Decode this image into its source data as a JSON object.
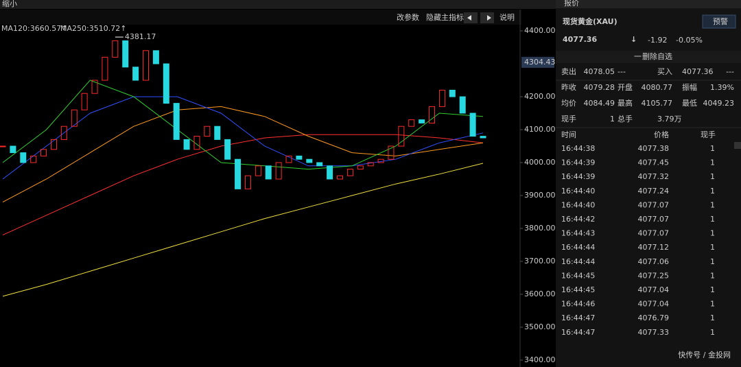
{
  "toolbar": {
    "zoom": "缩小",
    "buttons": [
      "改参数",
      "隐藏主指标",
      "说明"
    ]
  },
  "chart": {
    "ylim": [
      3379.17,
      4493.75
    ],
    "yticks": [
      {
        "value": 4400,
        "label": "4400.00"
      },
      {
        "value": 4200,
        "label": "4200.00"
      },
      {
        "value": 4100,
        "label": "4100.00"
      },
      {
        "value": 4000,
        "label": "4000.00"
      },
      {
        "value": 3900,
        "label": "3900.00"
      },
      {
        "value": 3800,
        "label": "3800.00"
      },
      {
        "value": 3700,
        "label": "3700.00"
      },
      {
        "value": 3600,
        "label": "3600.00"
      },
      {
        "value": 3500,
        "label": "3500.00"
      },
      {
        "value": 3400,
        "label": "3400.00"
      }
    ],
    "price_tag": {
      "value": 4304.43,
      "label": "4304.43"
    },
    "high": {
      "value": 4381.17,
      "label": "4381.17"
    },
    "ma_legend": [
      {
        "label": "MA120:3660.57↑",
        "color": "#ff4040"
      },
      {
        "label": "MA250:3510.72↑",
        "color": "#ffb020"
      }
    ],
    "up_color": "#ff2a2a",
    "down_color": "#27d8e0",
    "closes": [
      4050,
      4030,
      4000,
      4020,
      4040,
      4070,
      4110,
      4160,
      4210,
      4250,
      4320,
      4370,
      4290,
      4250,
      4340,
      4300,
      4180,
      4070,
      4040,
      4080,
      4110,
      4070,
      4010,
      3920,
      3960,
      3990,
      3950,
      4000,
      4020,
      4010,
      4000,
      3990,
      3950,
      3960,
      3980,
      3990,
      4000,
      4010,
      4050,
      4110,
      4130,
      4120,
      4170,
      4220,
      4200,
      4150,
      4080,
      4075
    ],
    "ma_lines": [
      {
        "color": "#f0e040",
        "values": [
          3594,
          3630,
          3670,
          3710,
          3750,
          3790,
          3830,
          3865,
          3900,
          3935,
          3965,
          3998
        ]
      },
      {
        "color": "#ff3030",
        "values": [
          3780,
          3840,
          3900,
          3960,
          4010,
          4050,
          4075,
          4085,
          4085,
          4085,
          4075,
          4060
        ]
      },
      {
        "color": "#ff9a20",
        "values": [
          3880,
          3950,
          4030,
          4110,
          4160,
          4170,
          4140,
          4080,
          4030,
          4020,
          4040,
          4060
        ]
      },
      {
        "color": "#3050ff",
        "values": [
          3950,
          4050,
          4150,
          4200,
          4200,
          4150,
          4050,
          3990,
          3990,
          4010,
          4060,
          4090
        ]
      },
      {
        "color": "#30d030",
        "values": [
          4000,
          4100,
          4250,
          4200,
          4100,
          4000,
          3990,
          3980,
          3990,
          4050,
          4150,
          4140
        ]
      }
    ]
  },
  "quote": {
    "panel_title": "报价",
    "name": "现货黄金(XAU)",
    "alert": "预警",
    "price": "4077.36",
    "change": "-1.92",
    "change_pct": "-0.05%",
    "remove": "删除自选",
    "stats": [
      [
        {
          "text": "卖出",
          "color": "#cccccc"
        },
        {
          "text": "4078.05",
          "color": "#22dd22"
        },
        {
          "text": "---",
          "color": "#cccccc"
        },
        {
          "text": "买入",
          "color": "#cccccc"
        },
        {
          "text": "4077.36",
          "color": "#22dd22"
        },
        {
          "text": "---",
          "color": "#cccccc"
        }
      ],
      [
        {
          "text": "昨收",
          "color": "#cccccc"
        },
        {
          "text": "4079.28",
          "color": "#ffffff"
        },
        {
          "text": "开盘",
          "color": "#cccccc"
        },
        {
          "text": "4080.77",
          "color": "#ff3030"
        },
        {
          "text": "振幅",
          "color": "#cccccc"
        },
        {
          "text": "1.39%",
          "color": "#ff3030"
        }
      ],
      [
        {
          "text": "均价",
          "color": "#cccccc"
        },
        {
          "text": "4084.49",
          "color": "#ff3030"
        },
        {
          "text": "最高",
          "color": "#cccccc"
        },
        {
          "text": "4105.77",
          "color": "#ff3030"
        },
        {
          "text": "最低",
          "color": "#cccccc"
        },
        {
          "text": "4049.23",
          "color": "#22dd22"
        }
      ],
      [
        {
          "text": "现手",
          "color": "#cccccc"
        },
        {
          "text": "1",
          "color": "#f0d000"
        },
        {
          "text": "总手",
          "color": "#cccccc"
        },
        {
          "text": "3.79万",
          "color": "#f0d000"
        }
      ]
    ],
    "trade_header": [
      "时间",
      "价格",
      "现手"
    ],
    "trades": [
      {
        "time": "16:44:38",
        "price": "4077.38",
        "qty": "1",
        "color": "#22dd22"
      },
      {
        "time": "16:44:39",
        "price": "4077.45",
        "qty": "1",
        "color": "#ff3030"
      },
      {
        "time": "16:44:39",
        "price": "4077.32",
        "qty": "1",
        "color": "#22dd22"
      },
      {
        "time": "16:44:40",
        "price": "4077.24",
        "qty": "1",
        "color": "#22dd22"
      },
      {
        "time": "16:44:40",
        "price": "4077.07",
        "qty": "1",
        "color": "#22dd22"
      },
      {
        "time": "16:44:42",
        "price": "4077.07",
        "qty": "1",
        "color": "#ffffff"
      },
      {
        "time": "16:44:43",
        "price": "4077.07",
        "qty": "1",
        "color": "#ffffff"
      },
      {
        "time": "16:44:44",
        "price": "4077.12",
        "qty": "1",
        "color": "#ff3030"
      },
      {
        "time": "16:44:44",
        "price": "4077.06",
        "qty": "1",
        "color": "#22dd22"
      },
      {
        "time": "16:44:45",
        "price": "4077.25",
        "qty": "1",
        "color": "#ff3030"
      },
      {
        "time": "16:44:45",
        "price": "4077.04",
        "qty": "1",
        "color": "#22dd22"
      },
      {
        "time": "16:44:46",
        "price": "4077.04",
        "qty": "1",
        "color": "#ffffff"
      },
      {
        "time": "16:44:47",
        "price": "4076.79",
        "qty": "1",
        "color": "#22dd22"
      },
      {
        "time": "16:44:47",
        "price": "4077.33",
        "qty": "1",
        "color": "#ff3030"
      }
    ]
  },
  "watermark": "快传号 / 金投网"
}
